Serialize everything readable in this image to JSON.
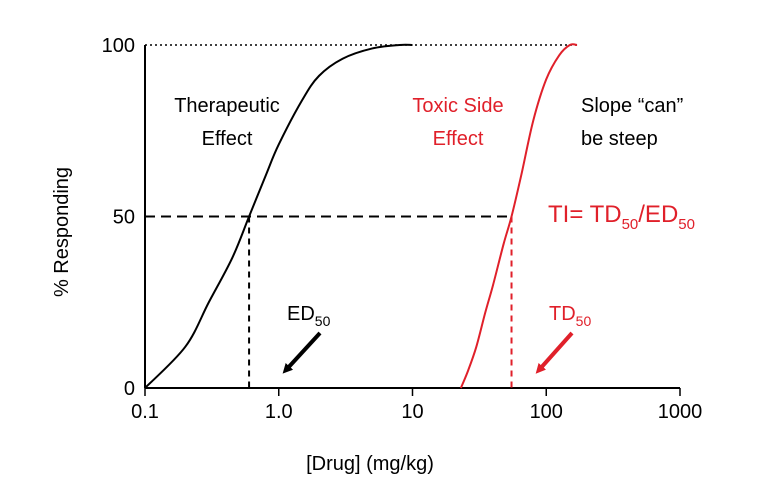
{
  "chart_data": {
    "type": "line",
    "xscale": "log",
    "xlim": [
      0.1,
      1000
    ],
    "ylim": [
      0,
      100
    ],
    "xticks": [
      "0.1",
      "1.0",
      "10",
      "100",
      "1000"
    ],
    "yticks": [
      "0",
      "50",
      "100"
    ],
    "xlabel": "[Drug] (mg/kg)",
    "ylabel": "% Responding",
    "series": [
      {
        "name_line1": "Therapeutic",
        "name_line2": "Effect",
        "color": "#000000",
        "half_max_dose": 0.6,
        "x": [
          0.1,
          0.2,
          0.3,
          0.45,
          0.6,
          0.8,
          1.0,
          1.5,
          2.0,
          3.0,
          5.0,
          8.0,
          10.0
        ],
        "y": [
          0,
          12,
          25,
          38,
          50,
          62,
          71,
          84,
          91,
          96,
          99,
          100,
          100
        ]
      },
      {
        "name_line1": "Toxic Side",
        "name_line2": "Effect",
        "color": "#e0202a",
        "half_max_dose": 55,
        "x": [
          23,
          26,
          30,
          35,
          40,
          48,
          55,
          65,
          80,
          100,
          125,
          150,
          170
        ],
        "y": [
          0,
          5,
          12,
          22,
          30,
          42,
          50,
          62,
          78,
          90,
          97,
          100,
          100
        ]
      }
    ],
    "annotations": {
      "slope_line1": "Slope “can”",
      "slope_line2": "be steep",
      "ti_main": "TI= TD",
      "ti_sub1": "50",
      "ti_slash": "/ED",
      "ti_sub2": "50",
      "ed_main": "ED",
      "ed_sub": "50",
      "td_main": "TD",
      "td_sub": "50"
    }
  }
}
